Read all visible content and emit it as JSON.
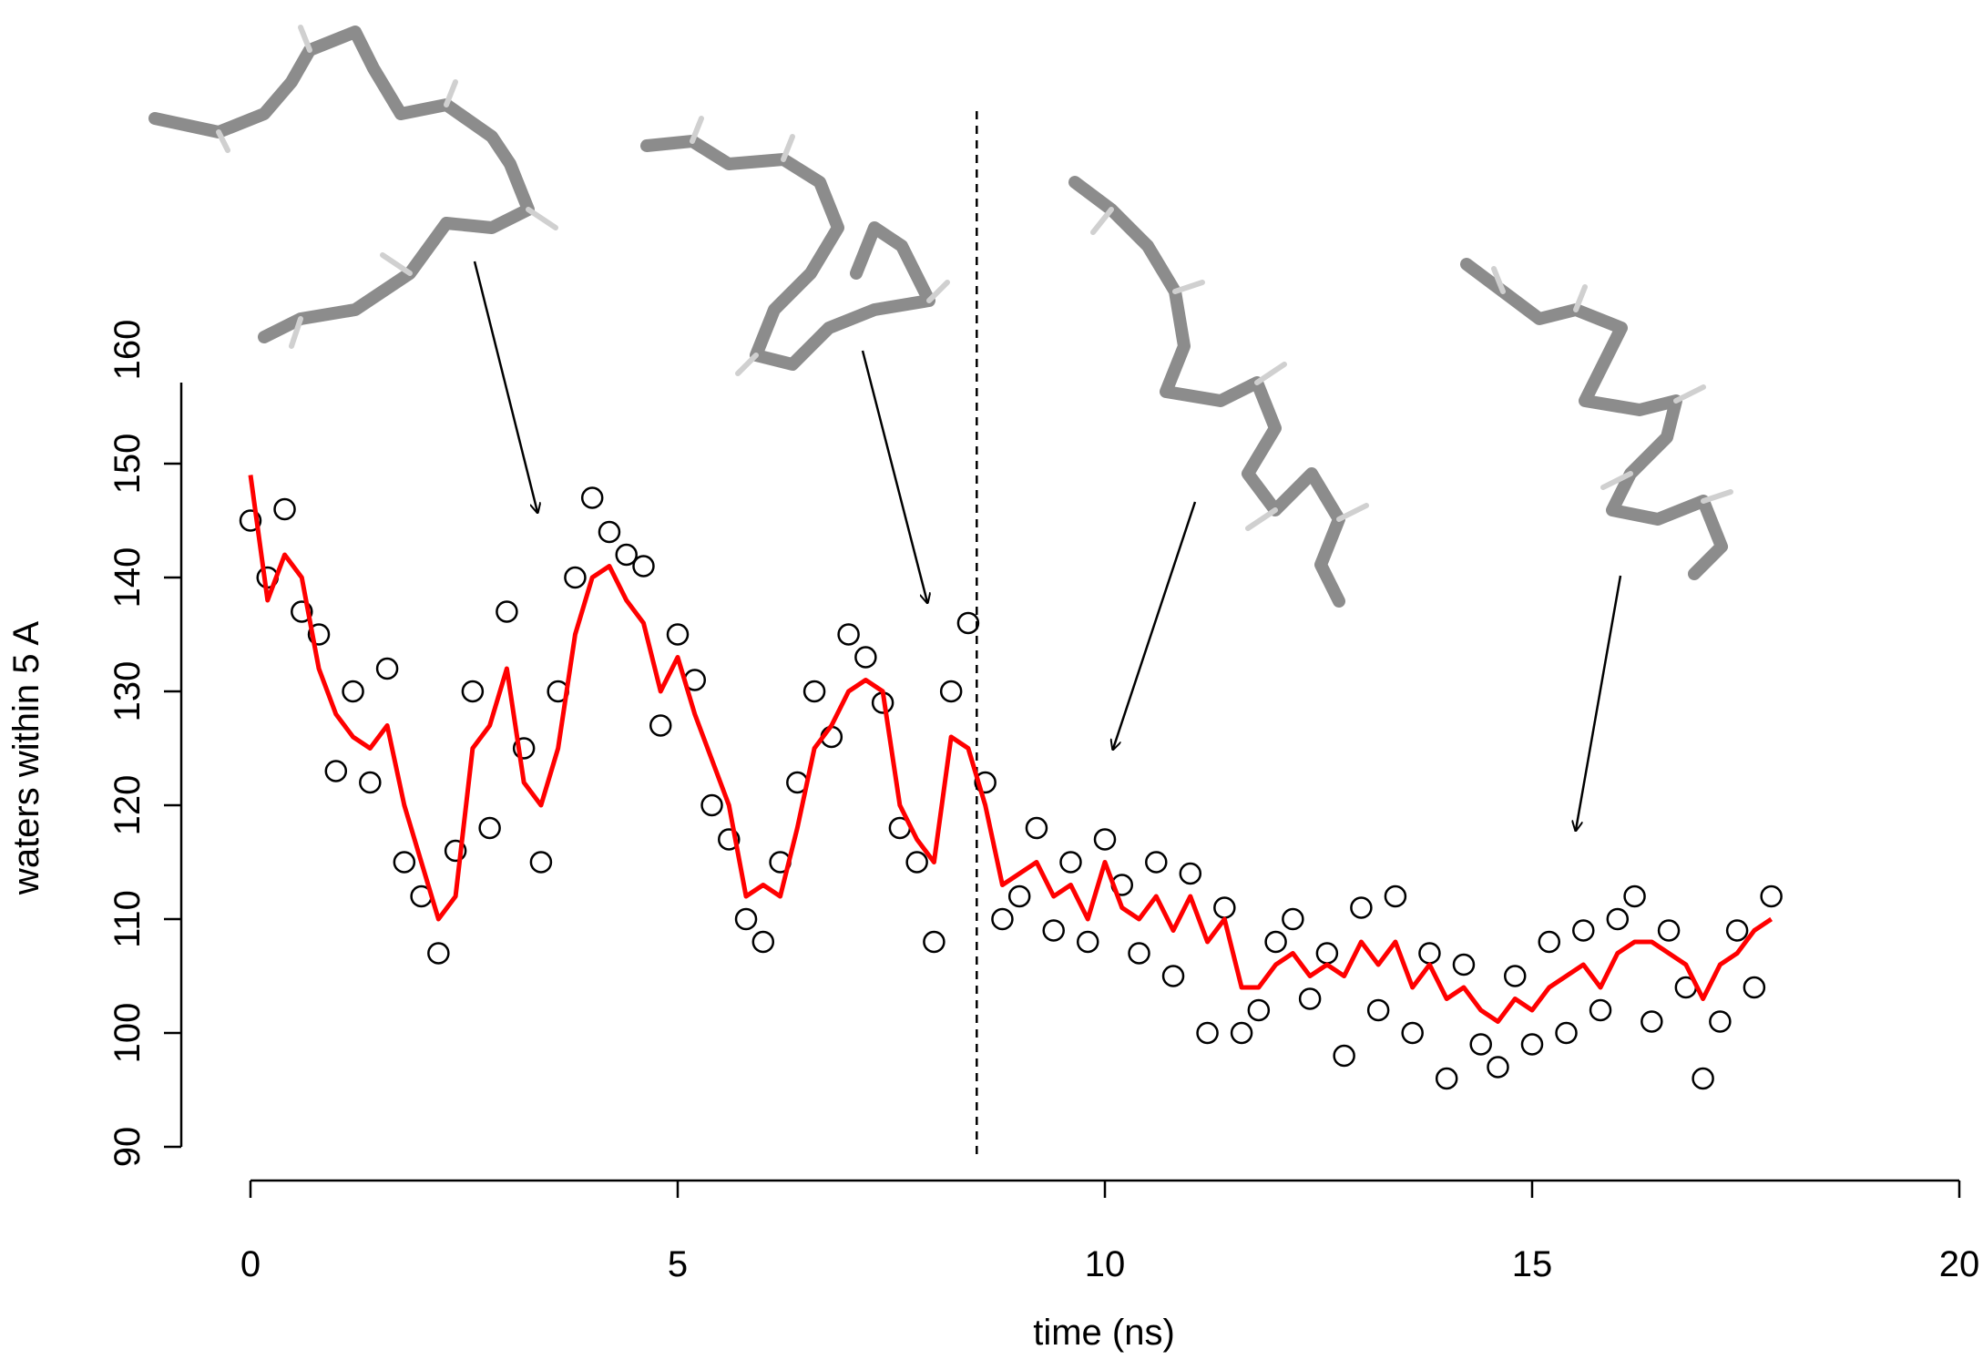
{
  "chart_data": {
    "type": "scatter",
    "xlabel": "time (ns)",
    "ylabel": "waters within 5 A",
    "x": [
      0,
      0.2,
      0.4,
      0.6,
      0.8,
      1,
      1.2,
      1.4,
      1.6,
      1.8,
      2,
      2.2,
      2.4,
      2.6,
      2.8,
      3,
      3.2,
      3.4,
      3.6,
      3.8,
      4,
      4.2,
      4.4,
      4.6,
      4.8,
      5,
      5.2,
      5.4,
      5.6,
      5.8,
      6,
      6.2,
      6.4,
      6.6,
      6.8,
      7,
      7.2,
      7.4,
      7.6,
      7.8,
      8,
      8.2,
      8.4,
      8.6,
      8.8,
      9,
      9.2,
      9.4,
      9.6,
      9.8,
      10,
      10.2,
      10.4,
      10.6,
      10.8,
      11,
      11.2,
      11.4,
      11.6,
      11.8,
      12,
      12.2,
      12.4,
      12.6,
      12.8,
      13,
      13.2,
      13.4,
      13.6,
      13.8,
      14,
      14.2,
      14.4,
      14.6,
      14.8,
      15,
      15.2,
      15.4,
      15.6,
      15.8,
      16,
      16.2,
      16.4,
      16.6,
      16.8,
      17,
      17.2,
      17.4,
      17.6,
      17.8
    ],
    "series": [
      {
        "mark": "circle",
        "color": "#000000",
        "values": [
          145,
          140,
          146,
          137,
          135,
          123,
          130,
          122,
          132,
          115,
          112,
          107,
          116,
          130,
          118,
          137,
          125,
          115,
          130,
          140,
          147,
          144,
          142,
          141,
          127,
          135,
          131,
          120,
          117,
          110,
          108,
          115,
          122,
          130,
          126,
          135,
          133,
          129,
          118,
          115,
          108,
          130,
          136,
          122,
          110,
          112,
          118,
          109,
          115,
          108,
          117,
          113,
          107,
          115,
          105,
          114,
          100,
          111,
          100,
          102,
          108,
          110,
          103,
          107,
          98,
          111,
          102,
          112,
          100,
          107,
          96,
          106,
          99,
          97,
          105,
          99,
          108,
          100,
          109,
          102,
          110,
          112,
          101,
          109,
          104,
          96,
          101,
          109,
          104,
          112
        ]
      },
      {
        "mark": "line",
        "color": "#ff0000",
        "values": [
          149,
          138,
          142,
          140,
          132,
          128,
          126,
          125,
          127,
          120,
          115,
          110,
          112,
          125,
          127,
          132,
          122,
          120,
          125,
          135,
          140,
          141,
          138,
          136,
          130,
          133,
          128,
          124,
          120,
          112,
          113,
          112,
          118,
          125,
          127,
          130,
          131,
          130,
          120,
          117,
          115,
          126,
          125,
          120,
          113,
          114,
          115,
          112,
          113,
          110,
          115,
          111,
          110,
          112,
          109,
          112,
          108,
          110,
          104,
          104,
          106,
          107,
          105,
          106,
          105,
          108,
          106,
          108,
          104,
          106,
          103,
          104,
          102,
          101,
          103,
          102,
          104,
          105,
          106,
          104,
          107,
          108,
          108,
          107,
          106,
          103,
          106,
          107,
          109,
          110
        ]
      }
    ],
    "vline": 8.5,
    "xlim": [
      0,
      20
    ],
    "xticks": [
      0,
      5,
      10,
      15,
      20
    ],
    "ylim": [
      90,
      160
    ],
    "yticks": [
      90,
      100,
      110,
      120,
      130,
      140,
      150,
      160
    ]
  }
}
